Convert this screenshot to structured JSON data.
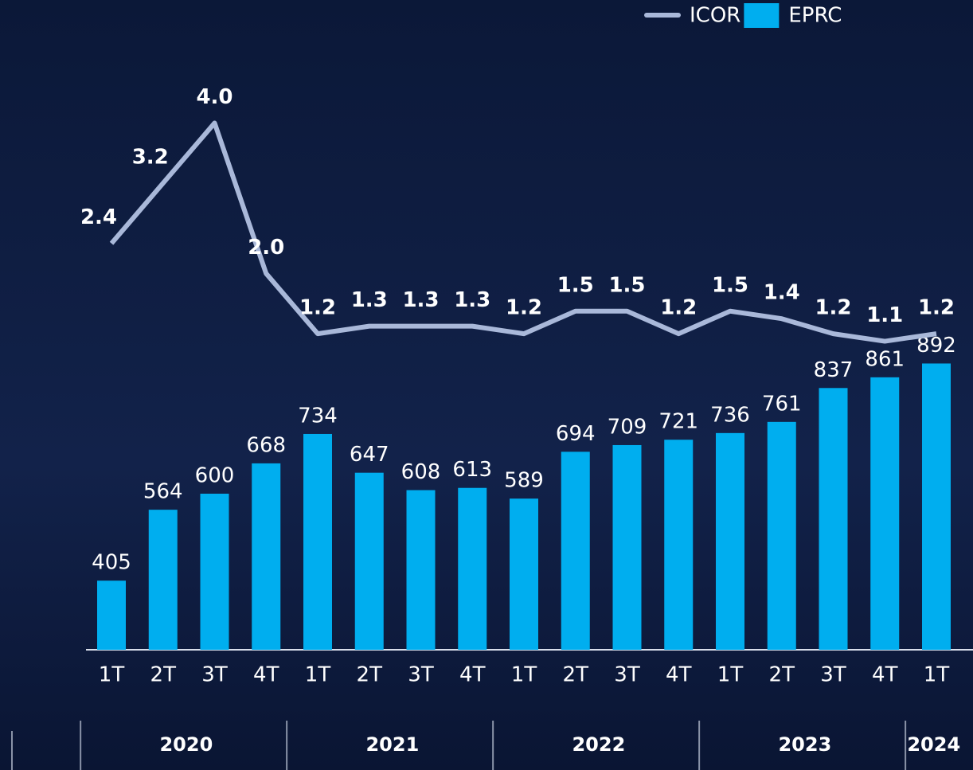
{
  "chart_data": {
    "type": "bar-line",
    "groups": [
      {
        "name": "2020",
        "categories": [
          "1T",
          "2T",
          "3T",
          "4T"
        ]
      },
      {
        "name": "2021",
        "categories": [
          "1T",
          "2T",
          "3T",
          "4T"
        ]
      },
      {
        "name": "2022",
        "categories": [
          "1T",
          "2T",
          "3T",
          "4T"
        ]
      },
      {
        "name": "2023",
        "categories": [
          "1T",
          "2T",
          "3T",
          "4T"
        ]
      },
      {
        "name": "2024",
        "categories": [
          "1T"
        ]
      }
    ],
    "series": [
      {
        "name": "ICOR",
        "type": "line",
        "axis": "y2",
        "color": "#a9b8d9",
        "values": [
          2.4,
          3.2,
          4.0,
          2.0,
          1.2,
          1.3,
          1.3,
          1.3,
          1.2,
          1.5,
          1.5,
          1.2,
          1.5,
          1.4,
          1.2,
          1.1,
          1.2
        ],
        "value_labels": [
          "2.4",
          "3.2",
          "4.0",
          "2.0",
          "1.2",
          "1.3",
          "1.3",
          "1.3",
          "1.2",
          "1.5",
          "1.5",
          "1.2",
          "1.5",
          "1.4",
          "1.2",
          "1.1",
          "1.2"
        ]
      },
      {
        "name": "EPRC",
        "type": "bar",
        "color": "#00aeef",
        "values": [
          405,
          564,
          600,
          668,
          734,
          647,
          608,
          613,
          589,
          694,
          709,
          721,
          736,
          761,
          837,
          861,
          892
        ]
      }
    ],
    "ylim": [
      250,
      1600
    ],
    "y2lim": [
      -3,
      5
    ]
  }
}
